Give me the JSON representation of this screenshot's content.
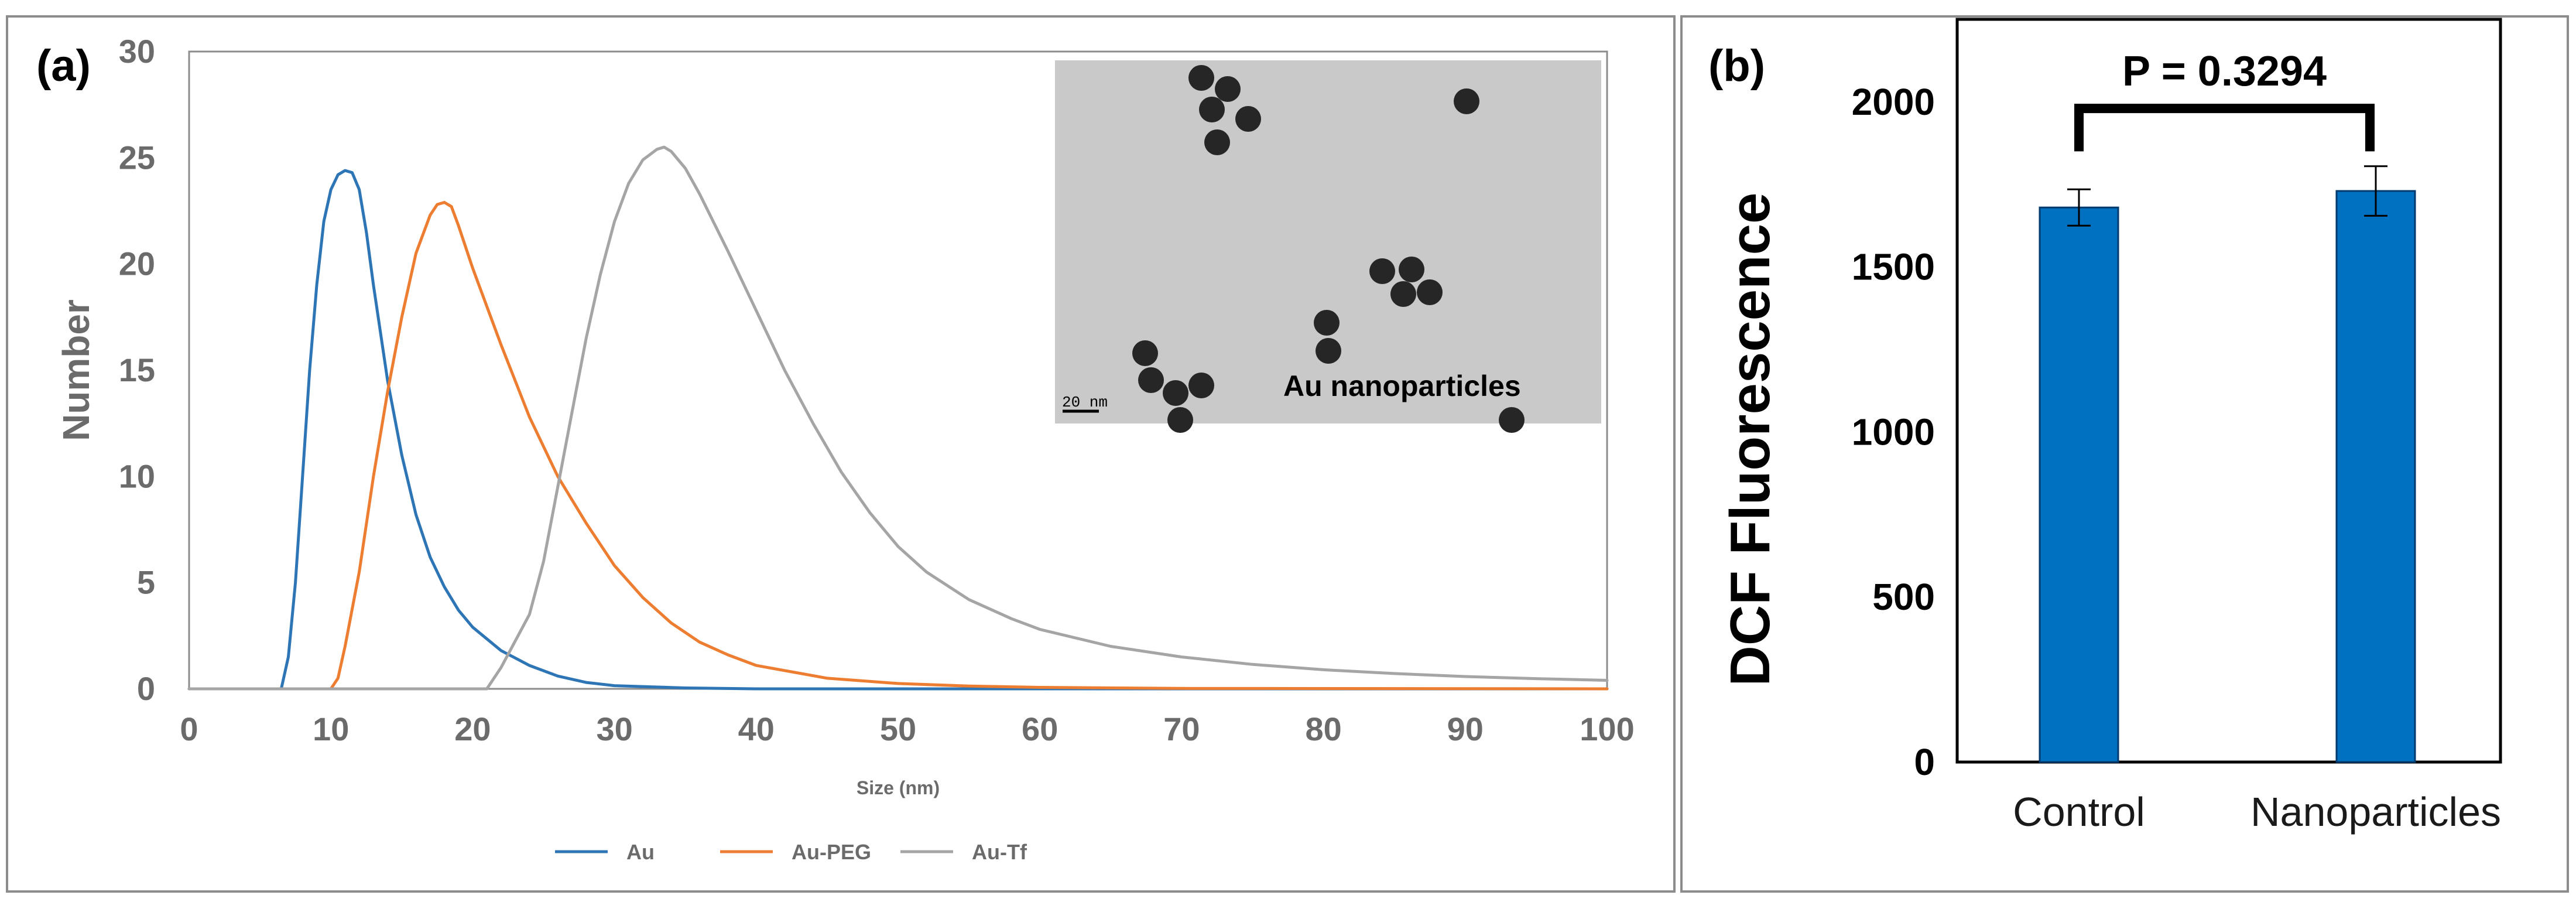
{
  "panel_labels": {
    "a": "(a)",
    "b": "(b)"
  },
  "colors": {
    "Au": "#2e75b6",
    "Au-PEG": "#ed7d31",
    "Au-Tf": "#a5a5a5",
    "bar": "#0070c0",
    "bar_edge": "#003a6e",
    "inset_bg": "#c9c9c9",
    "particle": "#262626"
  },
  "inset": {
    "caption": "Au nanoparticles",
    "scale_label": "20 nm",
    "scale_nm": 20,
    "content": "TEM micrograph"
  },
  "chart_data": [
    {
      "type": "line",
      "xlabel": "Size (nm)",
      "ylabel": "Number",
      "xlim": [
        0,
        100
      ],
      "ylim": [
        0,
        30
      ],
      "xticks": [
        "0",
        "10",
        "20",
        "30",
        "40",
        "50",
        "60",
        "70",
        "80",
        "90",
        "100"
      ],
      "yticks": [
        "0",
        "5",
        "10",
        "15",
        "20",
        "25",
        "30"
      ],
      "grid": false,
      "legend_position": "bottom",
      "series": [
        {
          "name": "Au",
          "points": [
            [
              0,
              0
            ],
            [
              6.5,
              0
            ],
            [
              7.0,
              1.5
            ],
            [
              7.5,
              5
            ],
            [
              8,
              10
            ],
            [
              8.5,
              15
            ],
            [
              9,
              19
            ],
            [
              9.5,
              22
            ],
            [
              10,
              23.5
            ],
            [
              10.5,
              24.2
            ],
            [
              11,
              24.4
            ],
            [
              11.5,
              24.3
            ],
            [
              12,
              23.5
            ],
            [
              12.5,
              21.5
            ],
            [
              13,
              19
            ],
            [
              14,
              14.5
            ],
            [
              15,
              11
            ],
            [
              16,
              8.2
            ],
            [
              17,
              6.2
            ],
            [
              18,
              4.8
            ],
            [
              19,
              3.7
            ],
            [
              20,
              2.9
            ],
            [
              22,
              1.8
            ],
            [
              24,
              1.1
            ],
            [
              26,
              0.6
            ],
            [
              28,
              0.3
            ],
            [
              30,
              0.15
            ],
            [
              35,
              0.04
            ],
            [
              40,
              0
            ],
            [
              100,
              0
            ]
          ]
        },
        {
          "name": "Au-PEG",
          "points": [
            [
              0,
              0
            ],
            [
              10,
              0
            ],
            [
              10.5,
              0.5
            ],
            [
              11,
              2
            ],
            [
              12,
              5.5
            ],
            [
              13,
              10
            ],
            [
              14,
              14
            ],
            [
              15,
              17.5
            ],
            [
              16,
              20.5
            ],
            [
              17,
              22.3
            ],
            [
              17.5,
              22.8
            ],
            [
              18,
              22.9
            ],
            [
              18.5,
              22.7
            ],
            [
              19,
              21.8
            ],
            [
              20,
              19.8
            ],
            [
              21,
              18
            ],
            [
              22,
              16.2
            ],
            [
              24,
              12.8
            ],
            [
              26,
              10
            ],
            [
              28,
              7.8
            ],
            [
              30,
              5.8
            ],
            [
              32,
              4.3
            ],
            [
              34,
              3.1
            ],
            [
              36,
              2.2
            ],
            [
              38,
              1.6
            ],
            [
              40,
              1.1
            ],
            [
              45,
              0.5
            ],
            [
              50,
              0.25
            ],
            [
              55,
              0.13
            ],
            [
              60,
              0.07
            ],
            [
              70,
              0.02
            ],
            [
              100,
              0
            ]
          ]
        },
        {
          "name": "Au-Tf",
          "points": [
            [
              0,
              0
            ],
            [
              21,
              0
            ],
            [
              22,
              1
            ],
            [
              24,
              3.5
            ],
            [
              25,
              6
            ],
            [
              26,
              9.5
            ],
            [
              27,
              13
            ],
            [
              28,
              16.5
            ],
            [
              29,
              19.5
            ],
            [
              30,
              22
            ],
            [
              31,
              23.8
            ],
            [
              32,
              24.9
            ],
            [
              33,
              25.4
            ],
            [
              33.5,
              25.5
            ],
            [
              34,
              25.3
            ],
            [
              35,
              24.5
            ],
            [
              36,
              23.3
            ],
            [
              38,
              20.6
            ],
            [
              40,
              17.8
            ],
            [
              42,
              15
            ],
            [
              44,
              12.5
            ],
            [
              46,
              10.2
            ],
            [
              48,
              8.3
            ],
            [
              50,
              6.7
            ],
            [
              52,
              5.5
            ],
            [
              55,
              4.2
            ],
            [
              58,
              3.3
            ],
            [
              60,
              2.8
            ],
            [
              65,
              2.0
            ],
            [
              70,
              1.5
            ],
            [
              75,
              1.15
            ],
            [
              80,
              0.9
            ],
            [
              85,
              0.72
            ],
            [
              90,
              0.58
            ],
            [
              95,
              0.48
            ],
            [
              100,
              0.4
            ]
          ]
        }
      ]
    },
    {
      "type": "bar",
      "ylabel": "DCF Fluorescence",
      "categories": [
        "Control",
        "Nanoparticles"
      ],
      "ylim": [
        0,
        2250
      ],
      "yticks": [
        "0",
        "500",
        "1000",
        "1500",
        "2000"
      ],
      "grid": false,
      "series": [
        {
          "values": [
            1680,
            1730
          ],
          "errors": [
            55,
            75
          ]
        }
      ],
      "annotation": {
        "text": "P = 0.3294",
        "bracket_y": 1980,
        "bracket_drop": 130
      }
    }
  ]
}
